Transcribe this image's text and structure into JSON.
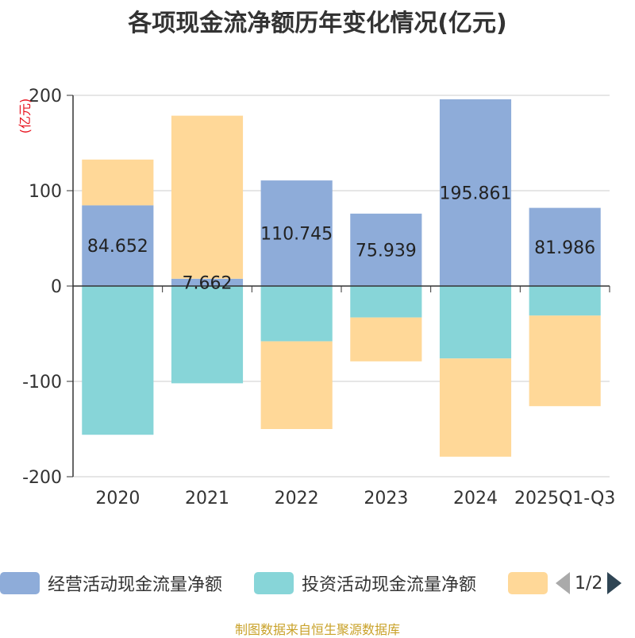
{
  "title": "各项现金流净额历年变化情况(亿元)",
  "source": "制图数据来自恒生聚源数据库",
  "legend": {
    "items": [
      {
        "label": "经营活动现金流量净额",
        "color": "#8eacd9"
      },
      {
        "label": "投资活动现金流量净额",
        "color": "#87d5d8"
      },
      {
        "label": "",
        "color": "#ffd898"
      }
    ],
    "page": "1/2"
  },
  "chart_data": {
    "type": "bar",
    "stacked": true,
    "categories": [
      "2020",
      "2021",
      "2022",
      "2023",
      "2024",
      "2025Q1-Q3"
    ],
    "ylabel": "(亿元)",
    "ylim": [
      -200,
      200
    ],
    "yticks": [
      "200",
      "100",
      "0",
      "-100",
      "-200"
    ],
    "grid": true,
    "series": [
      {
        "name": "经营活动现金流量净额",
        "color": "#8eacd9",
        "values": [
          84.652,
          7.662,
          110.745,
          75.939,
          195.861,
          81.986
        ],
        "labels": [
          "84.652",
          "7.662",
          "110.745",
          "75.939",
          "195.861",
          "81.986"
        ]
      },
      {
        "name": "投资活动现金流量净额",
        "color": "#87d5d8",
        "values": [
          -156,
          -102,
          -58,
          -33,
          -76,
          -31
        ]
      },
      {
        "color": "#ffd898",
        "values": [
          48,
          171,
          -92,
          -46,
          -103,
          -95
        ]
      }
    ]
  }
}
